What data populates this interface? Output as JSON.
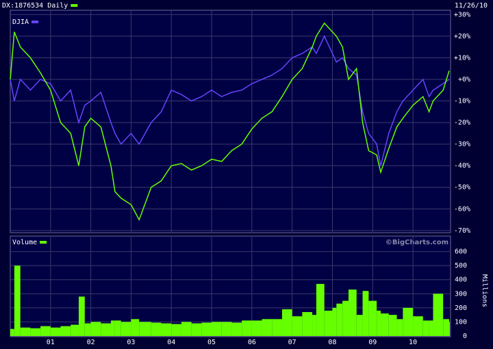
{
  "chart_data": [
    {
      "type": "line",
      "subtitle": "11/26/10",
      "x": [
        2000.0,
        2000.1,
        2000.25,
        2000.5,
        2000.75,
        2001.0,
        2001.25,
        2001.5,
        2001.7,
        2001.85,
        2002.0,
        2002.25,
        2002.5,
        2002.6,
        2002.75,
        2003.0,
        2003.2,
        2003.5,
        2003.75,
        2004.0,
        2004.25,
        2004.5,
        2004.75,
        2005.0,
        2005.25,
        2005.5,
        2005.75,
        2006.0,
        2006.25,
        2006.5,
        2006.75,
        2007.0,
        2007.25,
        2007.5,
        2007.6,
        2007.8,
        2008.0,
        2008.1,
        2008.25,
        2008.4,
        2008.6,
        2008.75,
        2008.9,
        2009.1,
        2009.2,
        2009.4,
        2009.6,
        2009.75,
        2010.0,
        2010.25,
        2010.4,
        2010.5,
        2010.75,
        2010.9
      ],
      "xlim": [
        2000.0,
        2010.9
      ],
      "series": [
        {
          "name": "DX:1876534 Daily",
          "color": "#66ff00",
          "values": [
            0,
            22,
            15,
            10,
            3,
            -5,
            -20,
            -25,
            -40,
            -22,
            -18,
            -22,
            -40,
            -52,
            -55,
            -58,
            -65,
            -50,
            -47,
            -40,
            -39,
            -42,
            -40,
            -37,
            -38,
            -33,
            -30,
            -23,
            -18,
            -15,
            -8,
            0,
            5,
            15,
            20,
            26,
            22,
            20,
            15,
            0,
            5,
            -20,
            -33,
            -35,
            -43,
            -32,
            -22,
            -18,
            -12,
            -8,
            -15,
            -10,
            -5,
            4
          ]
        },
        {
          "name": "DJIA",
          "color": "#6644ff",
          "values": [
            0,
            -10,
            0,
            -5,
            0,
            -2,
            -10,
            -5,
            -20,
            -12,
            -10,
            -6,
            -20,
            -25,
            -30,
            -25,
            -30,
            -20,
            -15,
            -5,
            -7,
            -10,
            -8,
            -5,
            -8,
            -6,
            -5,
            -2,
            0,
            2,
            5,
            10,
            12,
            15,
            12,
            20,
            12,
            8,
            10,
            5,
            2,
            -15,
            -25,
            -30,
            -40,
            -25,
            -15,
            -10,
            -5,
            0,
            -8,
            -5,
            -2,
            0
          ]
        }
      ],
      "ylim": [
        -71,
        32
      ],
      "yticks": [
        {
          "value": 30,
          "label": "+30%"
        },
        {
          "value": 20,
          "label": "+20%"
        },
        {
          "value": 10,
          "label": "+10%"
        },
        {
          "value": 0,
          "label": "+0%"
        },
        {
          "value": -10,
          "label": "-10%"
        },
        {
          "value": -20,
          "label": "-20%"
        },
        {
          "value": -30,
          "label": "-30%"
        },
        {
          "value": -40,
          "label": "-40%"
        },
        {
          "value": -50,
          "label": "-50%"
        },
        {
          "value": -60,
          "label": "-60%"
        },
        {
          "value": -70,
          "label": "-70%"
        }
      ],
      "grid": true
    },
    {
      "type": "bar",
      "annotation": "©BigCharts.com",
      "ylabel": "Millions",
      "x": [
        2000.0,
        2000.1,
        2000.25,
        2000.5,
        2000.75,
        2001.0,
        2001.25,
        2001.5,
        2001.7,
        2001.85,
        2002.0,
        2002.25,
        2002.5,
        2002.6,
        2002.75,
        2003.0,
        2003.2,
        2003.5,
        2003.75,
        2004.0,
        2004.25,
        2004.5,
        2004.75,
        2005.0,
        2005.25,
        2005.5,
        2005.75,
        2006.0,
        2006.25,
        2006.5,
        2006.75,
        2007.0,
        2007.25,
        2007.5,
        2007.6,
        2007.8,
        2008.0,
        2008.1,
        2008.25,
        2008.4,
        2008.6,
        2008.75,
        2008.9,
        2009.1,
        2009.2,
        2009.4,
        2009.6,
        2009.75,
        2010.0,
        2010.25,
        2010.4,
        2010.5,
        2010.75,
        2010.9
      ],
      "xlim": [
        2000.0,
        2010.9
      ],
      "xticks": [
        {
          "value": 2001,
          "label": "01"
        },
        {
          "value": 2002,
          "label": "02"
        },
        {
          "value": 2003,
          "label": "03"
        },
        {
          "value": 2004,
          "label": "04"
        },
        {
          "value": 2005,
          "label": "05"
        },
        {
          "value": 2006,
          "label": "06"
        },
        {
          "value": 2007,
          "label": "07"
        },
        {
          "value": 2008,
          "label": "08"
        },
        {
          "value": 2009,
          "label": "09"
        },
        {
          "value": 2010,
          "label": "10"
        }
      ],
      "series": [
        {
          "name": "Volume",
          "color": "#66ff00",
          "values": [
            50,
            500,
            60,
            55,
            70,
            60,
            70,
            80,
            280,
            90,
            100,
            90,
            110,
            110,
            100,
            120,
            100,
            95,
            90,
            85,
            100,
            90,
            95,
            100,
            100,
            95,
            110,
            110,
            120,
            120,
            190,
            140,
            170,
            150,
            370,
            180,
            200,
            230,
            250,
            330,
            150,
            320,
            250,
            180,
            160,
            150,
            120,
            200,
            140,
            110,
            110,
            300,
            120,
            100
          ]
        }
      ],
      "ylim": [
        0,
        700
      ],
      "yticks": [
        0,
        100,
        200,
        300,
        400,
        500,
        600
      ],
      "grid": true
    }
  ]
}
